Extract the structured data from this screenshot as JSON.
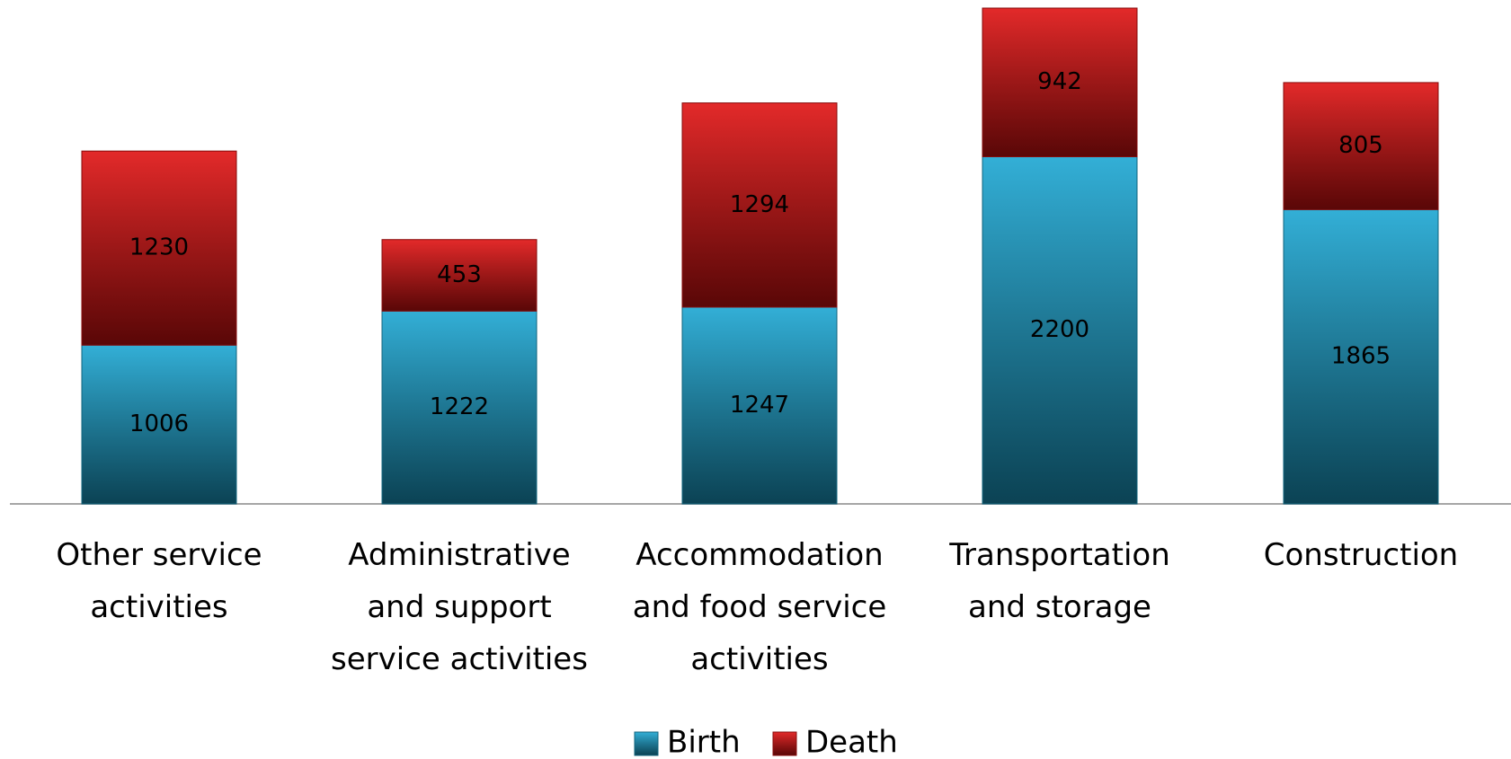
{
  "chart_data": {
    "type": "stacked_bar",
    "categories": [
      "Other service activities",
      "Administrative and support service activities",
      "Accommodation and food service activities",
      "Transportation and storage",
      "Construction"
    ],
    "series": [
      {
        "name": "Birth",
        "color": "#1ca6d2",
        "values": [
          1006,
          1222,
          1247,
          2200,
          1865
        ]
      },
      {
        "name": "Death",
        "color": "#e01212",
        "values": [
          1230,
          453,
          1294,
          942,
          805
        ]
      }
    ],
    "legend": "bottom"
  }
}
